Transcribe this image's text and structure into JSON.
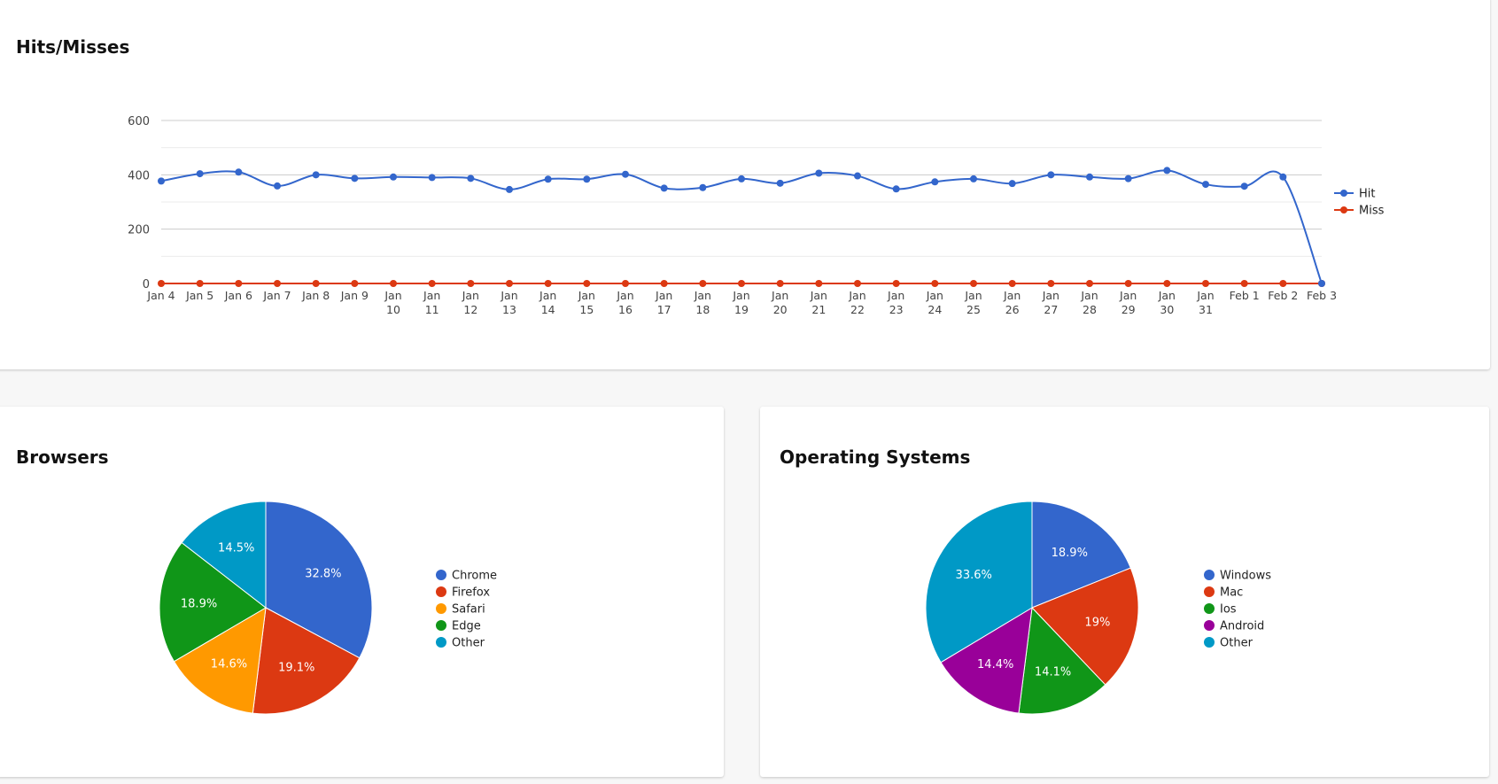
{
  "cards": {
    "hits": {
      "title": "Hits/Misses"
    },
    "browsers": {
      "title": "Browsers"
    },
    "os": {
      "title": "Operating Systems"
    }
  },
  "chart_data": [
    {
      "type": "line",
      "title": "Hits/Misses",
      "x": [
        "Jan 4",
        "Jan 5",
        "Jan 6",
        "Jan 7",
        "Jan 8",
        "Jan 9",
        "Jan 10",
        "Jan 11",
        "Jan 12",
        "Jan 13",
        "Jan 14",
        "Jan 15",
        "Jan 16",
        "Jan 17",
        "Jan 18",
        "Jan 19",
        "Jan 20",
        "Jan 21",
        "Jan 22",
        "Jan 23",
        "Jan 24",
        "Jan 25",
        "Jan 26",
        "Jan 27",
        "Jan 28",
        "Jan 29",
        "Jan 30",
        "Jan 31",
        "Feb 1",
        "Feb 2",
        "Feb 3"
      ],
      "series": [
        {
          "name": "Hit",
          "color": "#3366cc",
          "values": [
            377,
            404,
            410,
            359,
            400,
            387,
            392,
            390,
            387,
            346,
            384,
            384,
            402,
            351,
            353,
            385,
            369,
            406,
            396,
            348,
            374,
            385,
            368,
            400,
            392,
            386,
            416,
            365,
            358,
            392,
            0
          ]
        },
        {
          "name": "Miss",
          "color": "#dc3912",
          "values": [
            0,
            0,
            0,
            0,
            0,
            0,
            0,
            0,
            0,
            0,
            0,
            0,
            0,
            0,
            0,
            0,
            0,
            0,
            0,
            0,
            0,
            0,
            0,
            0,
            0,
            0,
            0,
            0,
            0,
            0,
            0
          ]
        }
      ],
      "yticks": [
        0,
        200,
        400,
        600
      ],
      "ylim": [
        0,
        600
      ],
      "grid": true,
      "legend": "right",
      "curve": "smooth"
    },
    {
      "type": "pie",
      "title": "Browsers",
      "legend": "right",
      "slices": [
        {
          "label": "Chrome",
          "value": 32.8,
          "text": "32.8%",
          "color": "#3366cc"
        },
        {
          "label": "Firefox",
          "value": 19.1,
          "text": "19.1%",
          "color": "#dc3912"
        },
        {
          "label": "Safari",
          "value": 14.6,
          "text": "14.6%",
          "color": "#ff9900"
        },
        {
          "label": "Edge",
          "value": 18.9,
          "text": "18.9%",
          "color": "#109618"
        },
        {
          "label": "Other",
          "value": 14.5,
          "text": "14.5%",
          "color": "#0099c6"
        }
      ]
    },
    {
      "type": "pie",
      "title": "Operating Systems",
      "legend": "right",
      "slices": [
        {
          "label": "Windows",
          "value": 18.9,
          "text": "18.9%",
          "color": "#3366cc"
        },
        {
          "label": "Mac",
          "value": 19,
          "text": "19%",
          "color": "#dc3912"
        },
        {
          "label": "Ios",
          "value": 14.1,
          "text": "14.1%",
          "color": "#109618"
        },
        {
          "label": "Android",
          "value": 14.4,
          "text": "14.4%",
          "color": "#990099"
        },
        {
          "label": "Other",
          "value": 33.6,
          "text": "33.6%",
          "color": "#0099c6"
        }
      ]
    }
  ]
}
